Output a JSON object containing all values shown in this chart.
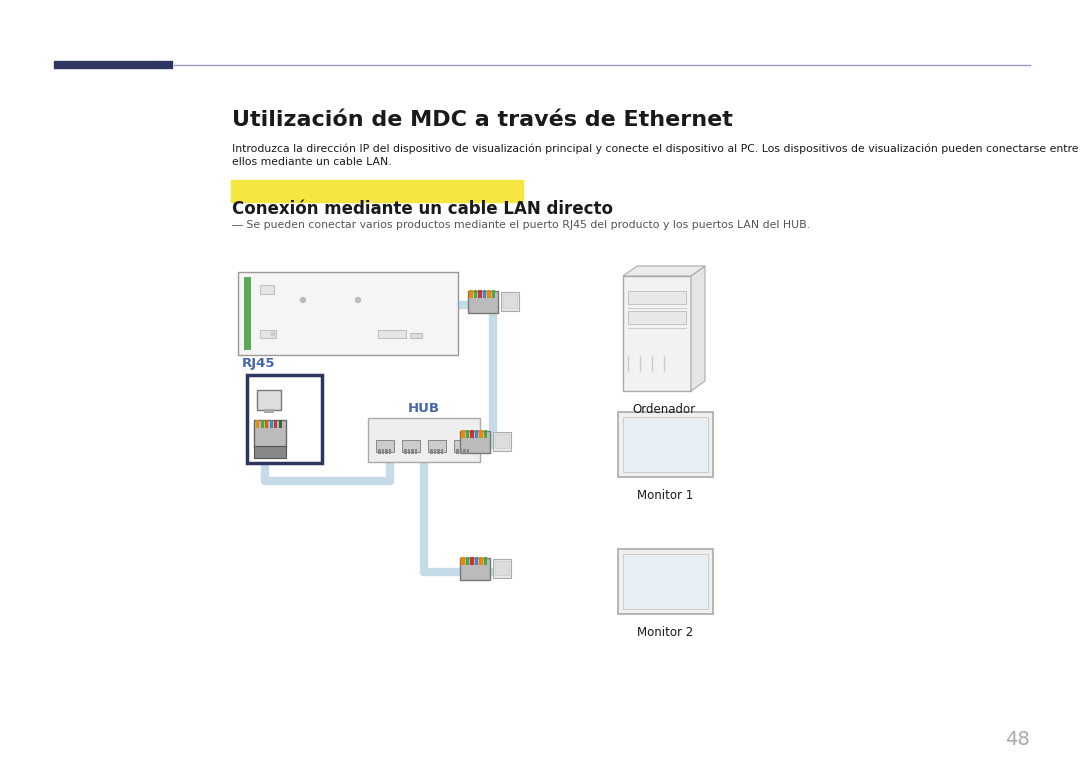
{
  "title": "Utilización de MDC a través de Ethernet",
  "subtitle_line1": "Introduzca la dirección IP del dispositivo de visualización principal y conecte el dispositivo al PC. Los dispositivos de visualización pueden conectarse entre",
  "subtitle_line2": "ellos mediante un cable LAN.",
  "section_label": "Conexión mediante un cable LAN directo",
  "section_label_bg": "#F5E642",
  "note": "― Se pueden conectar varios productos mediante el puerto RJ45 del producto y los puertos LAN del HUB.",
  "label_rj45": "RJ45",
  "label_hub": "HUB",
  "label_ordenador": "Ordenador",
  "label_monitor1": "Monitor 1",
  "label_monitor2": "Monitor 2",
  "page_number": "48",
  "header_bar_color": "#2d3561",
  "line_color": "#9999bb",
  "cable_color": "#c5dce8",
  "bg_color": "#ffffff",
  "text_color": "#1a1a1a",
  "note_color": "#555555",
  "rj45_border_color": "#2d3561",
  "hub_label_color": "#4466aa",
  "rj45_label_color": "#4466aa"
}
